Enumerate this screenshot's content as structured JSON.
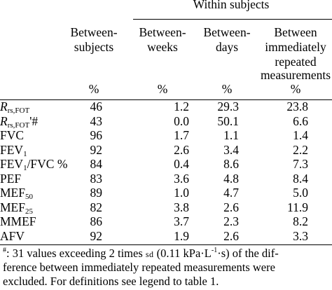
{
  "header": {
    "group_label": "Within subjects",
    "unit": "%",
    "columns": [
      {
        "id": "between_subjects",
        "lines": [
          "Between-",
          "subjects"
        ]
      },
      {
        "id": "between_weeks",
        "lines": [
          "Between-",
          "weeks"
        ]
      },
      {
        "id": "between_days",
        "lines": [
          "Between-",
          "days"
        ]
      },
      {
        "id": "immediate",
        "lines": [
          "Between",
          "immediately",
          "repeated",
          "measurements"
        ]
      }
    ]
  },
  "rows": [
    {
      "label": {
        "main": "R",
        "sub": "rs,FOT",
        "suffix": ""
      },
      "values": [
        "46",
        "1.2",
        "29.3",
        "23.8"
      ]
    },
    {
      "label": {
        "main": "R",
        "sub": "rs,FOT",
        "suffix": "'#"
      },
      "values": [
        "43",
        "0.0",
        "50.1",
        "6.6"
      ]
    },
    {
      "label": {
        "main": "FVC",
        "sub": "",
        "suffix": ""
      },
      "values": [
        "96",
        "1.7",
        "1.1",
        "1.4"
      ]
    },
    {
      "label": {
        "main": "FEV",
        "sub": "1",
        "suffix": ""
      },
      "values": [
        "92",
        "2.6",
        "3.4",
        "2.2"
      ]
    },
    {
      "label": {
        "main": "FEV",
        "sub": "1",
        "suffix": "/FVC %"
      },
      "values": [
        "84",
        "0.4",
        "8.6",
        "7.3"
      ]
    },
    {
      "label": {
        "main": "PEF",
        "sub": "",
        "suffix": ""
      },
      "values": [
        "83",
        "3.6",
        "4.8",
        "8.4"
      ]
    },
    {
      "label": {
        "main": "MEF",
        "sub": "50",
        "suffix": ""
      },
      "values": [
        "89",
        "1.0",
        "4.7",
        "5.0"
      ]
    },
    {
      "label": {
        "main": "MEF",
        "sub": "25",
        "suffix": ""
      },
      "values": [
        "82",
        "3.8",
        "2.6",
        "11.9"
      ]
    },
    {
      "label": {
        "main": "MMEF",
        "sub": "",
        "suffix": ""
      },
      "values": [
        "86",
        "3.7",
        "2.3",
        "8.2"
      ]
    },
    {
      "label": {
        "main": "AFV",
        "sub": "",
        "suffix": ""
      },
      "values": [
        "92",
        "1.9",
        "2.6",
        "3.3"
      ]
    }
  ],
  "footnote": {
    "marker": "#",
    "line1_a": ": 31 values exceeding 2 times ",
    "line1_sd": "sd",
    "line1_b": " (0.11 kPa·L",
    "line1_exp1": "-1",
    "line1_c": "·s) of the dif-",
    "line2": "ference between immediately repeated measurements were",
    "line3": "excluded. For definitions see legend to table 1."
  }
}
